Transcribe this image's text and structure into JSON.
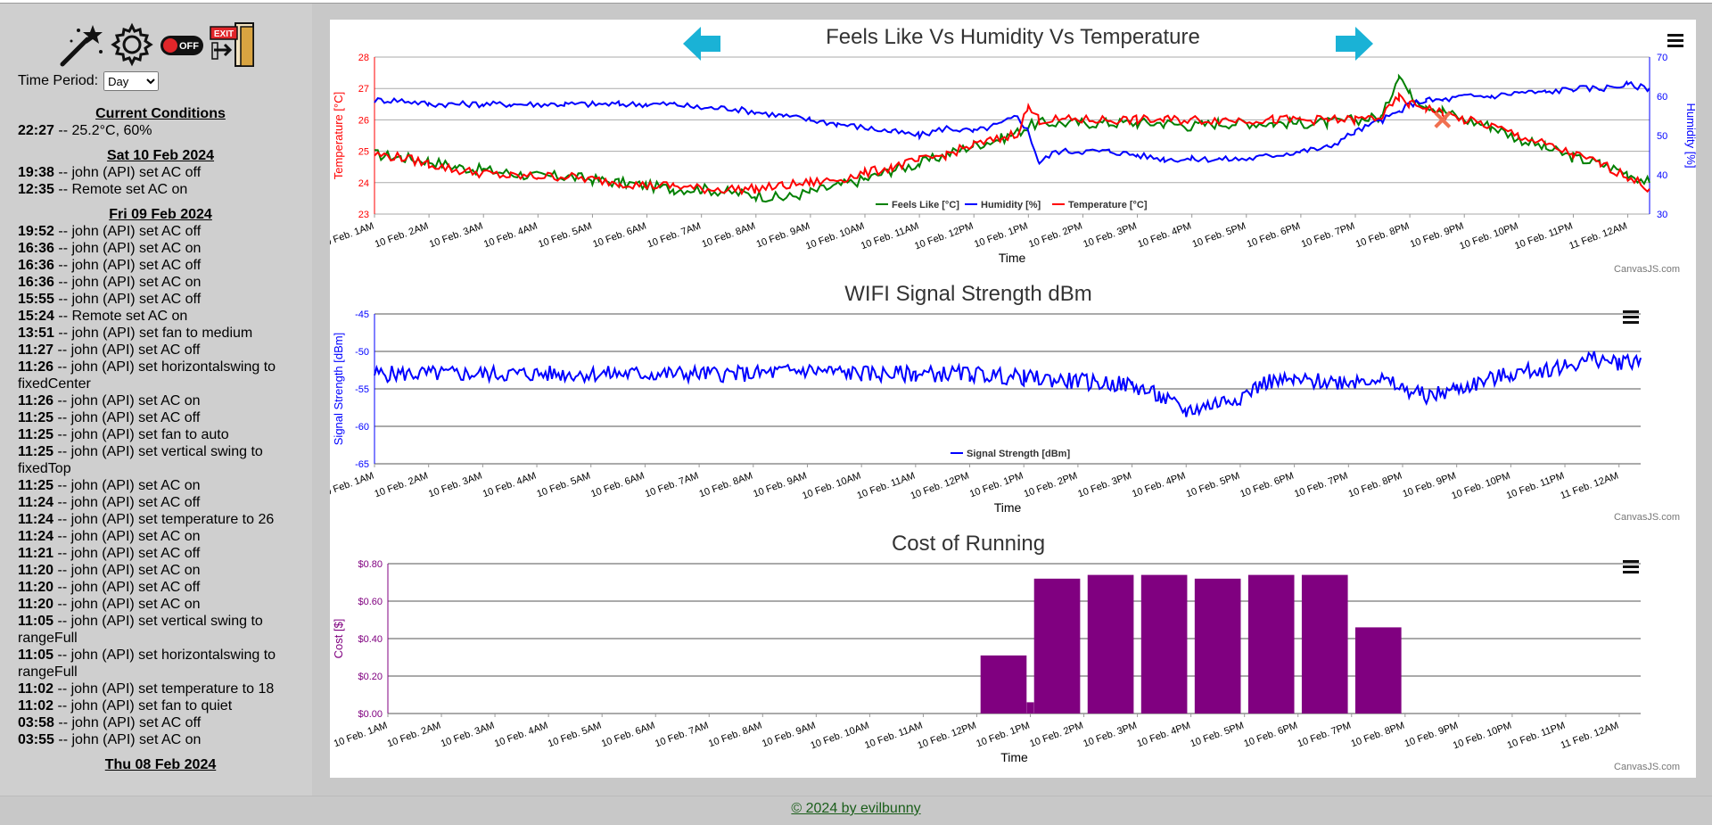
{
  "sidebar": {
    "toolbar": [
      {
        "name": "magic-wand-icon"
      },
      {
        "name": "gear-icon"
      },
      {
        "name": "power-off-icon",
        "label": "OFF"
      },
      {
        "name": "exit-icon",
        "label": "EXIT"
      }
    ],
    "time_period_label": "Time Period:",
    "time_period_value": "Day",
    "current_conditions_header": "Current Conditions",
    "current_conditions": {
      "time": "22:27",
      "text": " -- 25.2°C, 60%"
    },
    "days": [
      {
        "header": "Sat 10 Feb 2024",
        "entries": [
          {
            "time": "19:38",
            "text": " -- john (API) set AC off"
          },
          {
            "time": "12:35",
            "text": " -- Remote set AC on"
          }
        ]
      },
      {
        "header": "Fri 09 Feb 2024",
        "entries": [
          {
            "time": "19:52",
            "text": " -- john (API) set AC off"
          },
          {
            "time": "16:36",
            "text": " -- john (API) set AC on"
          },
          {
            "time": "16:36",
            "text": " -- john (API) set AC off"
          },
          {
            "time": "16:36",
            "text": " -- john (API) set AC on"
          },
          {
            "time": "15:55",
            "text": " -- john (API) set AC off"
          },
          {
            "time": "15:24",
            "text": " -- Remote set AC on"
          },
          {
            "time": "13:51",
            "text": " -- john (API) set fan to medium"
          },
          {
            "time": "11:27",
            "text": " -- john (API) set AC off"
          },
          {
            "time": "11:26",
            "text": " -- john (API) set horizontalswing to fixedCenter"
          },
          {
            "time": "11:26",
            "text": " -- john (API) set AC on"
          },
          {
            "time": "11:25",
            "text": " -- john (API) set AC off"
          },
          {
            "time": "11:25",
            "text": " -- john (API) set fan to auto"
          },
          {
            "time": "11:25",
            "text": " -- john (API) set vertical swing to fixedTop"
          },
          {
            "time": "11:25",
            "text": " -- john (API) set AC on"
          },
          {
            "time": "11:24",
            "text": " -- john (API) set AC off"
          },
          {
            "time": "11:24",
            "text": " -- john (API) set temperature to 26"
          },
          {
            "time": "11:24",
            "text": " -- john (API) set AC on"
          },
          {
            "time": "11:21",
            "text": " -- john (API) set AC off"
          },
          {
            "time": "11:20",
            "text": " -- john (API) set AC on"
          },
          {
            "time": "11:20",
            "text": " -- john (API) set AC off"
          },
          {
            "time": "11:20",
            "text": " -- john (API) set AC on"
          },
          {
            "time": "11:05",
            "text": " -- john (API) set vertical swing to rangeFull"
          },
          {
            "time": "11:05",
            "text": " -- john (API) set horizontalswing to rangeFull"
          },
          {
            "time": "11:02",
            "text": " -- john (API) set temperature to 18"
          },
          {
            "time": "11:02",
            "text": " -- john (API) set fan to quiet"
          },
          {
            "time": "03:58",
            "text": " -- john (API) set AC off"
          },
          {
            "time": "03:55",
            "text": " -- john (API) set AC on"
          }
        ]
      },
      {
        "header": "Thu 08 Feb 2024",
        "entries": []
      }
    ]
  },
  "footer": {
    "text": "© 2024 by evilbunny"
  },
  "credit": "CanvasJS.com",
  "colors": {
    "temperature": "#ff0000",
    "humidity": "#0000ff",
    "feels_like": "#008000",
    "cost": "#800080",
    "arrow": "#1ab2d6"
  },
  "chart_data": [
    {
      "type": "line",
      "title": "Feels Like Vs Humidity Vs Temperature",
      "xlabel": "Time",
      "ylabel": "Temperature [°C]",
      "y2label": "Humidity [%]",
      "ylim": [
        23,
        28
      ],
      "y2lim": [
        30,
        70
      ],
      "yticks": [
        23,
        24,
        25,
        26,
        27,
        28
      ],
      "y2ticks": [
        30,
        40,
        50,
        60,
        70
      ],
      "x_ticks": [
        "10 Feb. 1AM",
        "10 Feb. 2AM",
        "10 Feb. 3AM",
        "10 Feb. 4AM",
        "10 Feb. 5AM",
        "10 Feb. 6AM",
        "10 Feb. 7AM",
        "10 Feb. 8AM",
        "10 Feb. 9AM",
        "10 Feb. 10AM",
        "10 Feb. 11AM",
        "10 Feb. 12PM",
        "10 Feb. 1PM",
        "10 Feb. 2PM",
        "10 Feb. 3PM",
        "10 Feb. 4PM",
        "10 Feb. 5PM",
        "10 Feb. 6PM",
        "10 Feb. 7PM",
        "10 Feb. 8PM",
        "10 Feb. 9PM",
        "10 Feb. 10PM",
        "10 Feb. 11PM",
        "11 Feb. 12AM"
      ],
      "x_hours": [
        0,
        0.5,
        1,
        1.5,
        2,
        2.5,
        3,
        3.5,
        4,
        4.5,
        5,
        5.5,
        6,
        6.5,
        7,
        7.5,
        8,
        8.5,
        9,
        9.5,
        10,
        10.5,
        11,
        11.5,
        11.8,
        12,
        12.2,
        12.5,
        13,
        13.5,
        14,
        14.5,
        15,
        15.5,
        16,
        16.5,
        17,
        17.5,
        18,
        18.5,
        18.8,
        19,
        19.3,
        19.6,
        20,
        20.5,
        21,
        21.5,
        22,
        22.5,
        23,
        23.4
      ],
      "legend": [
        "Feels Like [°C]",
        "Humidity [%]",
        "Temperature [°C]"
      ],
      "legend_position": "bottom",
      "series": [
        {
          "name": "Feels Like [°C]",
          "axis": "left",
          "values": [
            24.9,
            24.8,
            24.7,
            24.5,
            24.4,
            24.3,
            24.2,
            24.2,
            24.1,
            24.0,
            23.9,
            23.8,
            23.8,
            23.7,
            23.6,
            23.5,
            23.7,
            23.9,
            24.1,
            24.4,
            24.6,
            24.9,
            25.2,
            25.4,
            25.6,
            25.8,
            25.9,
            25.9,
            25.9,
            25.9,
            25.9,
            25.9,
            25.8,
            25.9,
            25.9,
            25.9,
            25.9,
            25.9,
            26.0,
            26.1,
            27.5,
            26.8,
            26.5,
            26.3,
            26.0,
            25.8,
            25.4,
            25.1,
            24.8,
            24.6,
            24.3,
            24.0
          ]
        },
        {
          "name": "Humidity [%]",
          "axis": "right",
          "values": [
            59,
            59,
            58,
            58,
            58,
            58,
            58,
            58,
            58,
            58,
            58,
            58,
            57,
            57,
            56,
            55,
            54,
            53,
            52,
            51,
            50,
            52,
            51,
            53,
            55,
            51,
            43,
            46,
            46,
            46,
            45,
            44,
            44,
            44,
            44,
            45,
            46,
            47,
            51,
            54,
            56,
            58,
            59,
            59,
            60,
            60,
            61,
            61,
            62,
            62,
            63,
            62
          ]
        },
        {
          "name": "Temperature [°C]",
          "axis": "left",
          "values": [
            24.9,
            24.8,
            24.6,
            24.4,
            24.3,
            24.2,
            24.2,
            24.2,
            24.1,
            24.0,
            23.9,
            23.9,
            23.8,
            23.8,
            23.8,
            23.9,
            24.0,
            24.1,
            24.3,
            24.5,
            24.7,
            24.9,
            25.2,
            25.4,
            25.6,
            26.4,
            26.0,
            26.0,
            26.0,
            26.0,
            26.0,
            26.0,
            26.0,
            26.0,
            26.0,
            26.0,
            26.0,
            26.0,
            26.0,
            26.1,
            26.7,
            26.5,
            26.4,
            26.2,
            26.0,
            25.8,
            25.5,
            25.2,
            24.9,
            24.6,
            24.2,
            23.8
          ]
        }
      ]
    },
    {
      "type": "line",
      "title": "WIFI Signal Strength dBm",
      "xlabel": "Time",
      "ylabel": "Signal Strength [dBm]",
      "ylim": [
        -65,
        -45
      ],
      "yticks": [
        -65,
        -60,
        -55,
        -50,
        -45
      ],
      "x_ticks": [
        "10 Feb. 1AM",
        "10 Feb. 2AM",
        "10 Feb. 3AM",
        "10 Feb. 4AM",
        "10 Feb. 5AM",
        "10 Feb. 6AM",
        "10 Feb. 7AM",
        "10 Feb. 8AM",
        "10 Feb. 9AM",
        "10 Feb. 10AM",
        "10 Feb. 11AM",
        "10 Feb. 12PM",
        "10 Feb. 1PM",
        "10 Feb. 2PM",
        "10 Feb. 3PM",
        "10 Feb. 4PM",
        "10 Feb. 5PM",
        "10 Feb. 6PM",
        "10 Feb. 7PM",
        "10 Feb. 8PM",
        "10 Feb. 9PM",
        "10 Feb. 10PM",
        "10 Feb. 11PM",
        "11 Feb. 12AM"
      ],
      "x_hours": [
        0,
        1,
        2,
        3,
        4,
        5,
        6,
        7,
        8,
        9,
        10,
        11,
        12,
        13,
        14,
        14.5,
        15,
        15.5,
        16,
        16.5,
        17,
        18,
        18.5,
        19,
        19.5,
        20,
        20.5,
        21,
        21.5,
        22,
        22.5,
        23,
        23.4
      ],
      "legend": [
        "Signal Strength [dBm]"
      ],
      "legend_position": "bottom",
      "series": [
        {
          "name": "Signal Strength [dBm]",
          "values": [
            -53,
            -53,
            -53,
            -53,
            -53,
            -53,
            -53,
            -53,
            -52.5,
            -53,
            -53,
            -53,
            -53.5,
            -54,
            -54.5,
            -56,
            -58,
            -57,
            -56,
            -54,
            -54,
            -54,
            -53.5,
            -55,
            -56,
            -55,
            -54,
            -53,
            -52.5,
            -52,
            -51,
            -51.5,
            -51
          ]
        }
      ]
    },
    {
      "type": "bar",
      "title": "Cost of Running",
      "xlabel": "Time",
      "ylabel": "Cost [$]",
      "ylim": [
        0,
        0.8
      ],
      "yticks": [
        "$0.00",
        "$0.20",
        "$0.40",
        "$0.60",
        "$0.80"
      ],
      "x_ticks": [
        "10 Feb. 1AM",
        "10 Feb. 2AM",
        "10 Feb. 3AM",
        "10 Feb. 4AM",
        "10 Feb. 5AM",
        "10 Feb. 6AM",
        "10 Feb. 7AM",
        "10 Feb. 8AM",
        "10 Feb. 9AM",
        "10 Feb. 10AM",
        "10 Feb. 11AM",
        "10 Feb. 12PM",
        "10 Feb. 1PM",
        "10 Feb. 2PM",
        "10 Feb. 3PM",
        "10 Feb. 4PM",
        "10 Feb. 5PM",
        "10 Feb. 6PM",
        "10 Feb. 7PM",
        "10 Feb. 8PM",
        "10 Feb. 9PM",
        "10 Feb. 10PM",
        "10 Feb. 11PM",
        "11 Feb. 12AM"
      ],
      "bars": [
        {
          "hour": 11.5,
          "value": 0.31
        },
        {
          "hour": 12.0,
          "value": 0.06
        },
        {
          "hour": 12.5,
          "value": 0.72
        },
        {
          "hour": 13.5,
          "value": 0.74
        },
        {
          "hour": 14.5,
          "value": 0.74
        },
        {
          "hour": 15.5,
          "value": 0.72
        },
        {
          "hour": 16.5,
          "value": 0.74
        },
        {
          "hour": 17.5,
          "value": 0.74
        },
        {
          "hour": 18.5,
          "value": 0.46
        }
      ]
    }
  ]
}
